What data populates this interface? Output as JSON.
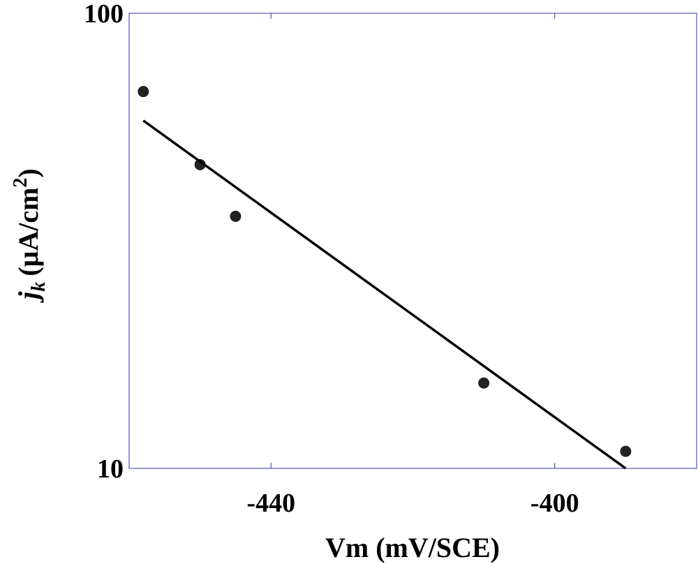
{
  "chart_data": {
    "type": "scatter",
    "xlabel": "Vm (mV/SCE)",
    "ylabel": {
      "symbol": "j",
      "subscript": "k",
      "unit": "(μA/cm",
      "superscript": "2",
      "close": ")"
    },
    "xlim": [
      -460,
      -380
    ],
    "ylim": [
      10,
      100
    ],
    "ylog": true,
    "xticks": [
      -440,
      -400
    ],
    "yticks": [
      10,
      100
    ],
    "frame_color": "#3030a0",
    "series": [
      {
        "style": "markers",
        "color": "#222222",
        "x": [
          -458,
          -450,
          -445,
          -410,
          -390
        ],
        "values": [
          67.3,
          46.5,
          35.8,
          15.4,
          10.9
        ]
      },
      {
        "style": "line",
        "color": "#000000",
        "x": [
          -458,
          -390
        ],
        "values": [
          58.1,
          10
        ]
      }
    ]
  }
}
